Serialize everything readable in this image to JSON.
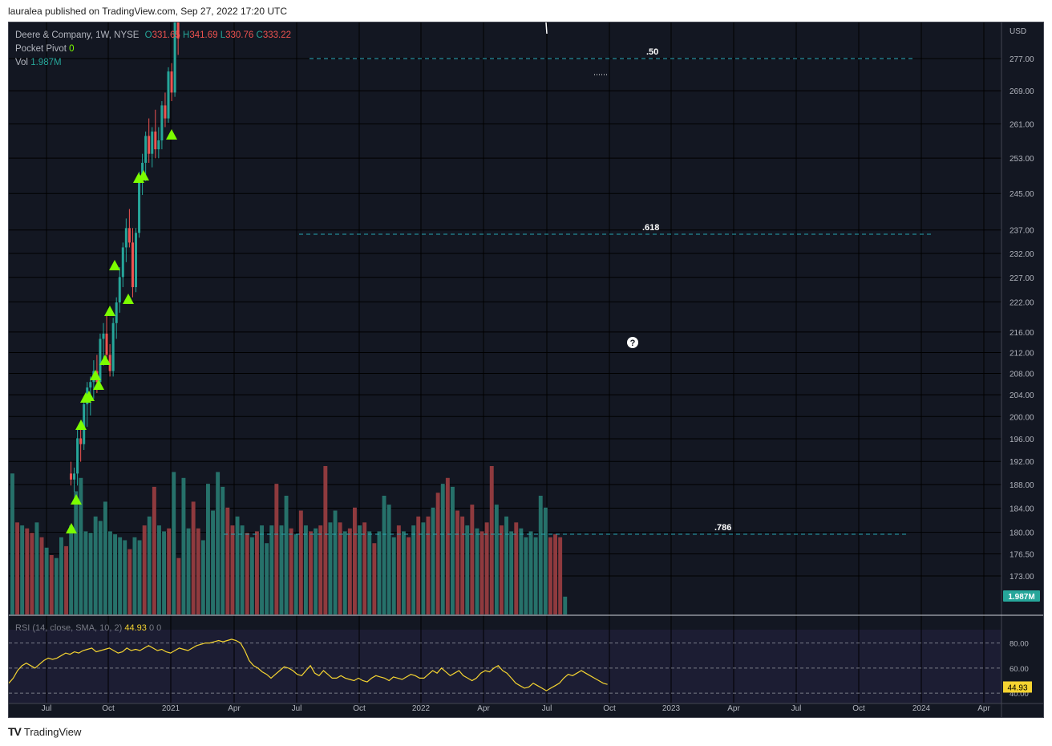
{
  "caption": "lauralea published on TradingView.com, Sep 27, 2022 17:20 UTC",
  "footer": {
    "brand": "TradingView",
    "logo": "TV"
  },
  "legend": {
    "symbol": "Deere & Company, 1W, NYSE",
    "o_label": "O",
    "o_value": "331.65",
    "h_label": "H",
    "h_value": "341.69",
    "l_label": "L",
    "l_value": "330.76",
    "c_label": "C",
    "c_value": "333.22",
    "pocket_label": "Pocket Pivot",
    "pocket_value": "0",
    "vol_label": "Vol",
    "vol_value": "1.987M"
  },
  "rsi": {
    "label": "RSI (14, close, SMA, 10, 2)",
    "value": "44.93",
    "extra1": "0",
    "extra2": "0",
    "ticks": [
      "80.00",
      "60.00",
      "40.00"
    ]
  },
  "currency": "USD",
  "price_ticks": [
    "277.00",
    "269.00",
    "261.00",
    "253.00",
    "245.00",
    "237.00",
    "232.00",
    "227.00",
    "222.00",
    "216.00",
    "212.00",
    "208.00",
    "204.00",
    "200.00",
    "196.00",
    "192.00",
    "188.00",
    "184.00",
    "180.00",
    "176.50",
    "173.00"
  ],
  "volume_badge": "1.987M",
  "time_ticks": [
    "Jul",
    "Oct",
    "2021",
    "Apr",
    "Jul",
    "Oct",
    "2022",
    "Apr",
    "Jul",
    "Oct",
    "2023",
    "Apr",
    "Jul",
    "Oct",
    "2024",
    "Apr"
  ],
  "fib_levels": [
    {
      "label": ".50",
      "price": 277.5
    },
    {
      "label": ".618",
      "price": 236.5
    },
    {
      "label": ".786",
      "price": 179.2
    }
  ],
  "colors": {
    "up": "#26a69a",
    "down": "#ef5350",
    "fib": "#26a6b2",
    "rsi_line": "#f5d431",
    "arrow": "#7cfc00",
    "background": "#131722"
  },
  "help_icon": "question-circle-icon",
  "chart_data": {
    "type": "candlestick",
    "title": "Deere & Company, 1W, NYSE",
    "y_scale": "log",
    "ylim": [
      170,
      285
    ],
    "candles": [
      {
        "o": 190,
        "h": 192,
        "l": 188,
        "c": 189
      },
      {
        "o": 189,
        "h": 191,
        "l": 187,
        "c": 190
      },
      {
        "o": 190,
        "h": 198,
        "l": 188,
        "c": 196
      },
      {
        "o": 196,
        "h": 199,
        "l": 192,
        "c": 195
      },
      {
        "o": 195,
        "h": 203,
        "l": 194,
        "c": 202
      },
      {
        "o": 202,
        "h": 206,
        "l": 198,
        "c": 205
      },
      {
        "o": 205,
        "h": 207,
        "l": 200,
        "c": 206
      },
      {
        "o": 206,
        "h": 210,
        "l": 203,
        "c": 208
      },
      {
        "o": 208,
        "h": 211,
        "l": 204,
        "c": 206
      },
      {
        "o": 206,
        "h": 215,
        "l": 205,
        "c": 214
      },
      {
        "o": 214,
        "h": 217,
        "l": 209,
        "c": 215
      },
      {
        "o": 215,
        "h": 219,
        "l": 210,
        "c": 211
      },
      {
        "o": 211,
        "h": 213,
        "l": 207,
        "c": 208
      },
      {
        "o": 208,
        "h": 218,
        "l": 207,
        "c": 217
      },
      {
        "o": 217,
        "h": 222,
        "l": 214,
        "c": 221
      },
      {
        "o": 221,
        "h": 228,
        "l": 219,
        "c": 226
      },
      {
        "o": 226,
        "h": 233,
        "l": 224,
        "c": 232
      },
      {
        "o": 232,
        "h": 238,
        "l": 229,
        "c": 236
      },
      {
        "o": 236,
        "h": 240,
        "l": 232,
        "c": 233
      },
      {
        "o": 233,
        "h": 236,
        "l": 222,
        "c": 224
      },
      {
        "o": 224,
        "h": 236,
        "l": 223,
        "c": 235
      },
      {
        "o": 235,
        "h": 248,
        "l": 234,
        "c": 247
      },
      {
        "o": 247,
        "h": 252,
        "l": 243,
        "c": 250
      },
      {
        "o": 250,
        "h": 257,
        "l": 246,
        "c": 256
      },
      {
        "o": 256,
        "h": 260,
        "l": 250,
        "c": 252
      },
      {
        "o": 252,
        "h": 258,
        "l": 249,
        "c": 257
      },
      {
        "o": 257,
        "h": 262,
        "l": 251,
        "c": 253
      },
      {
        "o": 253,
        "h": 258,
        "l": 251,
        "c": 255
      },
      {
        "o": 255,
        "h": 264,
        "l": 253,
        "c": 263
      },
      {
        "o": 263,
        "h": 266,
        "l": 258,
        "c": 260
      },
      {
        "o": 260,
        "h": 272,
        "l": 259,
        "c": 271
      },
      {
        "o": 271,
        "h": 273,
        "l": 264,
        "c": 266
      },
      {
        "o": 266,
        "h": 285,
        "l": 265,
        "c": 284
      },
      {
        "o": 284,
        "h": 285,
        "l": 275,
        "c": 279
      }
    ],
    "volume": [
      {
        "v": 0.95,
        "up": true
      },
      {
        "v": 0.62,
        "up": false
      },
      {
        "v": 0.6,
        "up": true
      },
      {
        "v": 0.58,
        "up": false
      },
      {
        "v": 0.55,
        "up": false
      },
      {
        "v": 0.62,
        "up": true
      },
      {
        "v": 0.52,
        "up": false
      },
      {
        "v": 0.45,
        "up": true
      },
      {
        "v": 0.4,
        "up": false
      },
      {
        "v": 0.38,
        "up": true
      },
      {
        "v": 0.52,
        "up": true
      },
      {
        "v": 0.46,
        "up": false
      },
      {
        "v": 0.6,
        "up": true
      },
      {
        "v": 0.83,
        "up": true
      },
      {
        "v": 0.92,
        "up": true
      },
      {
        "v": 0.56,
        "up": true
      },
      {
        "v": 0.55,
        "up": true
      },
      {
        "v": 0.66,
        "up": true
      },
      {
        "v": 0.63,
        "up": true
      },
      {
        "v": 0.76,
        "up": true
      },
      {
        "v": 0.56,
        "up": true
      },
      {
        "v": 0.54,
        "up": true
      },
      {
        "v": 0.52,
        "up": true
      },
      {
        "v": 0.5,
        "up": true
      },
      {
        "v": 0.44,
        "up": false
      },
      {
        "v": 0.52,
        "up": true
      },
      {
        "v": 0.5,
        "up": true
      },
      {
        "v": 0.6,
        "up": false
      },
      {
        "v": 0.66,
        "up": true
      },
      {
        "v": 0.86,
        "up": false
      },
      {
        "v": 0.6,
        "up": true
      },
      {
        "v": 0.56,
        "up": true
      },
      {
        "v": 0.58,
        "up": false
      },
      {
        "v": 0.96,
        "up": true
      },
      {
        "v": 0.38,
        "up": false
      },
      {
        "v": 0.92,
        "up": true
      },
      {
        "v": 0.58,
        "up": true
      },
      {
        "v": 0.76,
        "up": false
      },
      {
        "v": 0.58,
        "up": false
      },
      {
        "v": 0.5,
        "up": true
      },
      {
        "v": 0.88,
        "up": true
      },
      {
        "v": 0.7,
        "up": true
      },
      {
        "v": 0.96,
        "up": true
      },
      {
        "v": 0.86,
        "up": true
      },
      {
        "v": 0.72,
        "up": false
      },
      {
        "v": 0.6,
        "up": false
      },
      {
        "v": 0.66,
        "up": true
      },
      {
        "v": 0.6,
        "up": true
      },
      {
        "v": 0.55,
        "up": false
      },
      {
        "v": 0.52,
        "up": true
      },
      {
        "v": 0.56,
        "up": false
      },
      {
        "v": 0.6,
        "up": true
      },
      {
        "v": 0.48,
        "up": true
      },
      {
        "v": 0.6,
        "up": true
      },
      {
        "v": 0.88,
        "up": false
      },
      {
        "v": 0.6,
        "up": true
      },
      {
        "v": 0.8,
        "up": true
      },
      {
        "v": 0.58,
        "up": false
      },
      {
        "v": 0.54,
        "up": true
      },
      {
        "v": 0.7,
        "up": false
      },
      {
        "v": 0.6,
        "up": true
      },
      {
        "v": 0.56,
        "up": false
      },
      {
        "v": 0.58,
        "up": true
      },
      {
        "v": 0.6,
        "up": false
      },
      {
        "v": 1.0,
        "up": false
      },
      {
        "v": 0.62,
        "up": true
      },
      {
        "v": 0.7,
        "up": true
      },
      {
        "v": 0.62,
        "up": false
      },
      {
        "v": 0.56,
        "up": true
      },
      {
        "v": 0.58,
        "up": false
      },
      {
        "v": 0.72,
        "up": false
      },
      {
        "v": 0.6,
        "up": true
      },
      {
        "v": 0.62,
        "up": false
      },
      {
        "v": 0.56,
        "up": true
      },
      {
        "v": 0.48,
        "up": false
      },
      {
        "v": 0.56,
        "up": true
      },
      {
        "v": 0.8,
        "up": true
      },
      {
        "v": 0.74,
        "up": true
      },
      {
        "v": 0.52,
        "up": true
      },
      {
        "v": 0.6,
        "up": false
      },
      {
        "v": 0.56,
        "up": true
      },
      {
        "v": 0.52,
        "up": false
      },
      {
        "v": 0.6,
        "up": true
      },
      {
        "v": 0.66,
        "up": false
      },
      {
        "v": 0.62,
        "up": true
      },
      {
        "v": 0.66,
        "up": false
      },
      {
        "v": 0.72,
        "up": true
      },
      {
        "v": 0.82,
        "up": false
      },
      {
        "v": 0.88,
        "up": true
      },
      {
        "v": 0.92,
        "up": false
      },
      {
        "v": 0.86,
        "up": true
      },
      {
        "v": 0.7,
        "up": false
      },
      {
        "v": 0.66,
        "up": false
      },
      {
        "v": 0.6,
        "up": true
      },
      {
        "v": 0.74,
        "up": false
      },
      {
        "v": 0.58,
        "up": true
      },
      {
        "v": 0.56,
        "up": false
      },
      {
        "v": 0.62,
        "up": false
      },
      {
        "v": 1.0,
        "up": false
      },
      {
        "v": 0.74,
        "up": true
      },
      {
        "v": 0.6,
        "up": false
      },
      {
        "v": 0.66,
        "up": true
      },
      {
        "v": 0.56,
        "up": true
      },
      {
        "v": 0.62,
        "up": false
      },
      {
        "v": 0.58,
        "up": true
      },
      {
        "v": 0.52,
        "up": true
      },
      {
        "v": 0.56,
        "up": true
      },
      {
        "v": 0.52,
        "up": true
      },
      {
        "v": 0.8,
        "up": true
      },
      {
        "v": 0.72,
        "up": true
      },
      {
        "v": 0.52,
        "up": false
      },
      {
        "v": 0.54,
        "up": false
      },
      {
        "v": 0.52,
        "up": false
      },
      {
        "v": 0.12,
        "up": true
      }
    ],
    "rsi_series": [
      48,
      52,
      58,
      62,
      64,
      62,
      60,
      63,
      66,
      68,
      67,
      68,
      70,
      72,
      71,
      73,
      72,
      74,
      75,
      76,
      73,
      74,
      75,
      76,
      74,
      72,
      73,
      76,
      74,
      75,
      74,
      76,
      78,
      76,
      74,
      75,
      73,
      72,
      74,
      76,
      75,
      74,
      76,
      78,
      79,
      80,
      80,
      81,
      82,
      81,
      82,
      83,
      82,
      80,
      74,
      66,
      62,
      60,
      57,
      55,
      52,
      55,
      58,
      61,
      60,
      58,
      55,
      54,
      58,
      62,
      56,
      54,
      58,
      55,
      52,
      52,
      54,
      52,
      51,
      50,
      52,
      50,
      49,
      52,
      54,
      53,
      52,
      50,
      53,
      52,
      51,
      53,
      55,
      54,
      52,
      52,
      55,
      58,
      56,
      60,
      57,
      54,
      56,
      58,
      54,
      52,
      50,
      52,
      56,
      58,
      57,
      60,
      62,
      58,
      56,
      52,
      48,
      46,
      44,
      45,
      48,
      46,
      44,
      42,
      44,
      46,
      48,
      52,
      55,
      54,
      56,
      58,
      56,
      54,
      52,
      50,
      48,
      47
    ]
  }
}
